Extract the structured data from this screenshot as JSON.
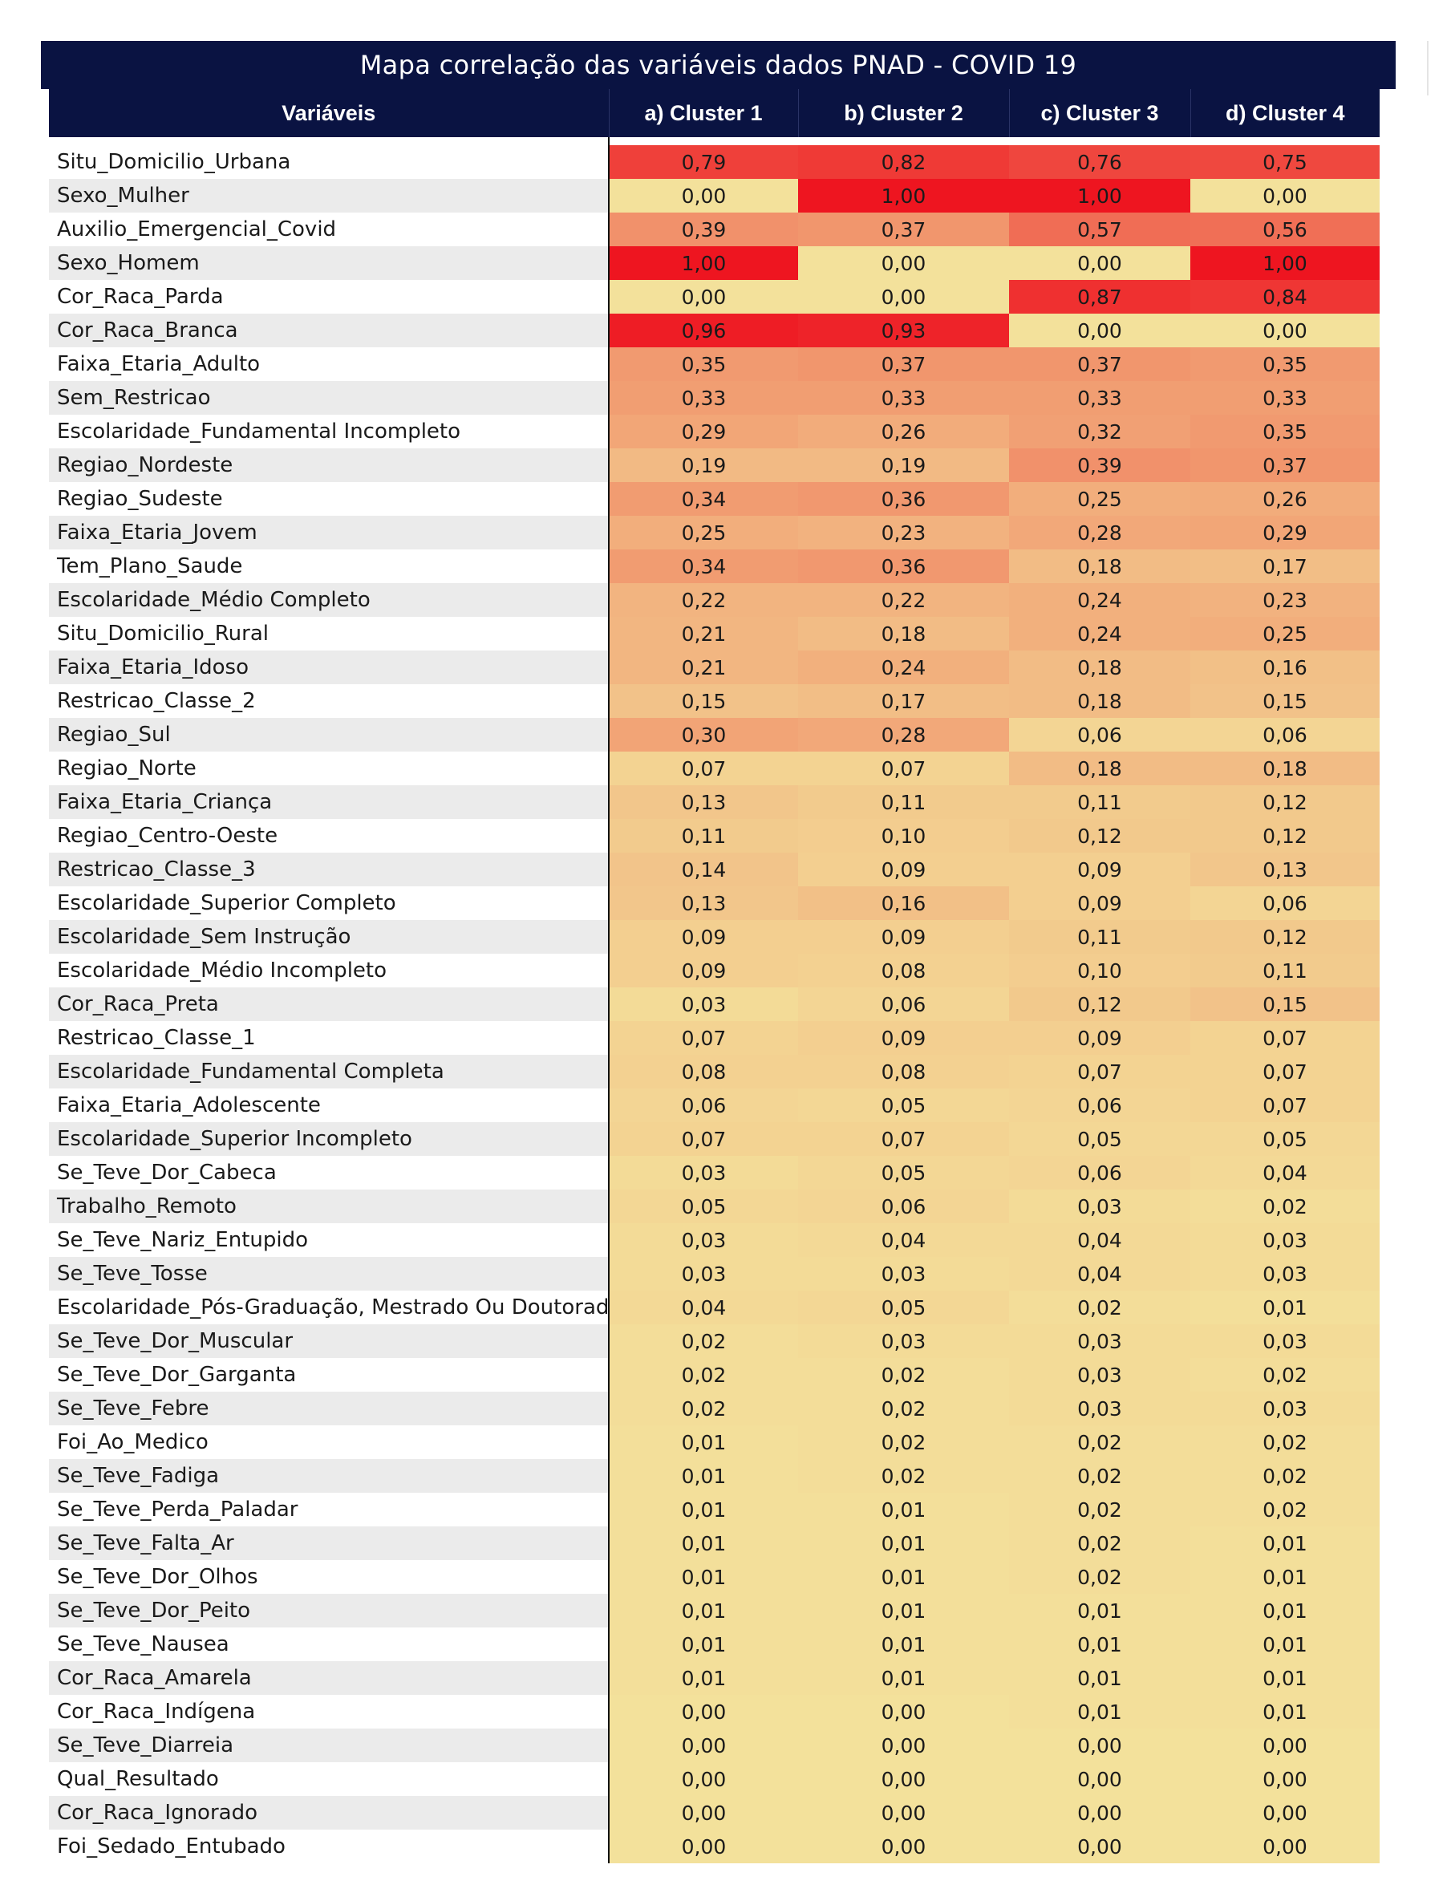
{
  "title": "Mapa correlação das variáveis dados PNAD - COVID 19",
  "chart_data": {
    "type": "heatmap",
    "title": "Mapa correlação das variáveis dados PNAD - COVID 19",
    "row_header": "Variáveis",
    "columns": [
      "a) Cluster 1",
      "b) Cluster 2",
      "c) Cluster 3",
      "d) Cluster 4"
    ],
    "value_range": [
      0,
      1
    ],
    "color_scale": {
      "low": "#f3e19b",
      "high": "#ee1520"
    },
    "rows": [
      {
        "name": "Situ_Domicilio_Urbana",
        "values": [
          "0,79",
          "0,82",
          "0,76",
          "0,75"
        ]
      },
      {
        "name": "Sexo_Mulher",
        "values": [
          "0,00",
          "1,00",
          "1,00",
          "0,00"
        ]
      },
      {
        "name": "Auxilio_Emergencial_Covid",
        "values": [
          "0,39",
          "0,37",
          "0,57",
          "0,56"
        ]
      },
      {
        "name": "Sexo_Homem",
        "values": [
          "1,00",
          "0,00",
          "0,00",
          "1,00"
        ]
      },
      {
        "name": "Cor_Raca_Parda",
        "values": [
          "0,00",
          "0,00",
          "0,87",
          "0,84"
        ]
      },
      {
        "name": "Cor_Raca_Branca",
        "values": [
          "0,96",
          "0,93",
          "0,00",
          "0,00"
        ]
      },
      {
        "name": "Faixa_Etaria_Adulto",
        "values": [
          "0,35",
          "0,37",
          "0,37",
          "0,35"
        ]
      },
      {
        "name": "Sem_Restricao",
        "values": [
          "0,33",
          "0,33",
          "0,33",
          "0,33"
        ]
      },
      {
        "name": "Escolaridade_Fundamental Incompleto",
        "values": [
          "0,29",
          "0,26",
          "0,32",
          "0,35"
        ]
      },
      {
        "name": "Regiao_Nordeste",
        "values": [
          "0,19",
          "0,19",
          "0,39",
          "0,37"
        ]
      },
      {
        "name": "Regiao_Sudeste",
        "values": [
          "0,34",
          "0,36",
          "0,25",
          "0,26"
        ]
      },
      {
        "name": "Faixa_Etaria_Jovem",
        "values": [
          "0,25",
          "0,23",
          "0,28",
          "0,29"
        ]
      },
      {
        "name": "Tem_Plano_Saude",
        "values": [
          "0,34",
          "0,36",
          "0,18",
          "0,17"
        ]
      },
      {
        "name": "Escolaridade_Médio Completo",
        "values": [
          "0,22",
          "0,22",
          "0,24",
          "0,23"
        ]
      },
      {
        "name": "Situ_Domicilio_Rural",
        "values": [
          "0,21",
          "0,18",
          "0,24",
          "0,25"
        ]
      },
      {
        "name": "Faixa_Etaria_Idoso",
        "values": [
          "0,21",
          "0,24",
          "0,18",
          "0,16"
        ]
      },
      {
        "name": "Restricao_Classe_2",
        "values": [
          "0,15",
          "0,17",
          "0,18",
          "0,15"
        ]
      },
      {
        "name": "Regiao_Sul",
        "values": [
          "0,30",
          "0,28",
          "0,06",
          "0,06"
        ]
      },
      {
        "name": "Regiao_Norte",
        "values": [
          "0,07",
          "0,07",
          "0,18",
          "0,18"
        ]
      },
      {
        "name": "Faixa_Etaria_Criança",
        "values": [
          "0,13",
          "0,11",
          "0,11",
          "0,12"
        ]
      },
      {
        "name": "Regiao_Centro-Oeste",
        "values": [
          "0,11",
          "0,10",
          "0,12",
          "0,12"
        ]
      },
      {
        "name": "Restricao_Classe_3",
        "values": [
          "0,14",
          "0,09",
          "0,09",
          "0,13"
        ]
      },
      {
        "name": "Escolaridade_Superior Completo",
        "values": [
          "0,13",
          "0,16",
          "0,09",
          "0,06"
        ]
      },
      {
        "name": "Escolaridade_Sem Instrução",
        "values": [
          "0,09",
          "0,09",
          "0,11",
          "0,12"
        ]
      },
      {
        "name": "Escolaridade_Médio Incompleto",
        "values": [
          "0,09",
          "0,08",
          "0,10",
          "0,11"
        ]
      },
      {
        "name": "Cor_Raca_Preta",
        "values": [
          "0,03",
          "0,06",
          "0,12",
          "0,15"
        ]
      },
      {
        "name": "Restricao_Classe_1",
        "values": [
          "0,07",
          "0,09",
          "0,09",
          "0,07"
        ]
      },
      {
        "name": "Escolaridade_Fundamental Completa",
        "values": [
          "0,08",
          "0,08",
          "0,07",
          "0,07"
        ]
      },
      {
        "name": "Faixa_Etaria_Adolescente",
        "values": [
          "0,06",
          "0,05",
          "0,06",
          "0,07"
        ]
      },
      {
        "name": "Escolaridade_Superior Incompleto",
        "values": [
          "0,07",
          "0,07",
          "0,05",
          "0,05"
        ]
      },
      {
        "name": "Se_Teve_Dor_Cabeca",
        "values": [
          "0,03",
          "0,05",
          "0,06",
          "0,04"
        ]
      },
      {
        "name": "Trabalho_Remoto",
        "values": [
          "0,05",
          "0,06",
          "0,03",
          "0,02"
        ]
      },
      {
        "name": "Se_Teve_Nariz_Entupido",
        "values": [
          "0,03",
          "0,04",
          "0,04",
          "0,03"
        ]
      },
      {
        "name": "Se_Teve_Tosse",
        "values": [
          "0,03",
          "0,03",
          "0,04",
          "0,03"
        ]
      },
      {
        "name": "Escolaridade_Pós-Graduação, Mestrado Ou Doutorado",
        "values": [
          "0,04",
          "0,05",
          "0,02",
          "0,01"
        ]
      },
      {
        "name": "Se_Teve_Dor_Muscular",
        "values": [
          "0,02",
          "0,03",
          "0,03",
          "0,03"
        ]
      },
      {
        "name": "Se_Teve_Dor_Garganta",
        "values": [
          "0,02",
          "0,02",
          "0,03",
          "0,02"
        ]
      },
      {
        "name": "Se_Teve_Febre",
        "values": [
          "0,02",
          "0,02",
          "0,03",
          "0,03"
        ]
      },
      {
        "name": "Foi_Ao_Medico",
        "values": [
          "0,01",
          "0,02",
          "0,02",
          "0,02"
        ]
      },
      {
        "name": "Se_Teve_Fadiga",
        "values": [
          "0,01",
          "0,02",
          "0,02",
          "0,02"
        ]
      },
      {
        "name": "Se_Teve_Perda_Paladar",
        "values": [
          "0,01",
          "0,01",
          "0,02",
          "0,02"
        ]
      },
      {
        "name": "Se_Teve_Falta_Ar",
        "values": [
          "0,01",
          "0,01",
          "0,02",
          "0,01"
        ]
      },
      {
        "name": "Se_Teve_Dor_Olhos",
        "values": [
          "0,01",
          "0,01",
          "0,02",
          "0,01"
        ]
      },
      {
        "name": "Se_Teve_Dor_Peito",
        "values": [
          "0,01",
          "0,01",
          "0,01",
          "0,01"
        ]
      },
      {
        "name": "Se_Teve_Nausea",
        "values": [
          "0,01",
          "0,01",
          "0,01",
          "0,01"
        ]
      },
      {
        "name": "Cor_Raca_Amarela",
        "values": [
          "0,01",
          "0,01",
          "0,01",
          "0,01"
        ]
      },
      {
        "name": "Cor_Raca_Indígena",
        "values": [
          "0,00",
          "0,00",
          "0,01",
          "0,01"
        ]
      },
      {
        "name": "Se_Teve_Diarreia",
        "values": [
          "0,00",
          "0,00",
          "0,00",
          "0,00"
        ]
      },
      {
        "name": "Qual_Resultado",
        "values": [
          "0,00",
          "0,00",
          "0,00",
          "0,00"
        ]
      },
      {
        "name": "Cor_Raca_Ignorado",
        "values": [
          "0,00",
          "0,00",
          "0,00",
          "0,00"
        ]
      },
      {
        "name": "Foi_Sedado_Entubado",
        "values": [
          "0,00",
          "0,00",
          "0,00",
          "0,00"
        ]
      }
    ]
  }
}
